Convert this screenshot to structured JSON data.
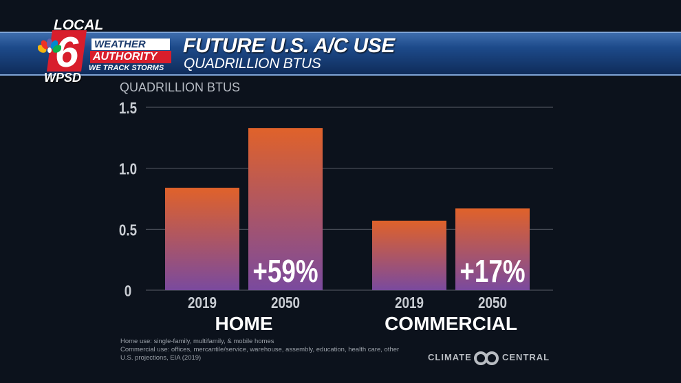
{
  "header": {
    "station_top": "LOCAL",
    "station_number": "6",
    "station_call": "WPSD",
    "brand_line1": "WEATHER",
    "brand_line2": "AUTHORITY",
    "brand_line3": "WE TRACK STORMS",
    "title": "FUTURE U.S. A/C USE",
    "subtitle": "QUADRILLION BTUS"
  },
  "chart_data": {
    "type": "bar",
    "ylabel": "QUADRILLION BTUS",
    "ylim": [
      0,
      1.5
    ],
    "yticks": [
      "1.5",
      "1.0",
      "0.5",
      "0"
    ],
    "grid": true,
    "groups": [
      {
        "label": "HOME",
        "categories": [
          "2019",
          "2050"
        ],
        "values": [
          0.84,
          1.33
        ],
        "annotation": "+59%"
      },
      {
        "label": "COMMERCIAL",
        "categories": [
          "2019",
          "2050"
        ],
        "values": [
          0.57,
          0.67
        ],
        "annotation": "+17%"
      }
    ],
    "colors": {
      "bar_top": "#e0622a",
      "bar_bottom": "#7a4a9e",
      "grid": "#5a5f68"
    }
  },
  "footnotes": [
    "Home use: single-family, multifamily, & mobile homes",
    "Commercial use: offices, mercantile/service, warehouse, assembly, education, health care, other",
    "U.S. projections, EIA (2019)"
  ],
  "credit": {
    "left": "CLIMATE",
    "right": "CENTRAL"
  }
}
